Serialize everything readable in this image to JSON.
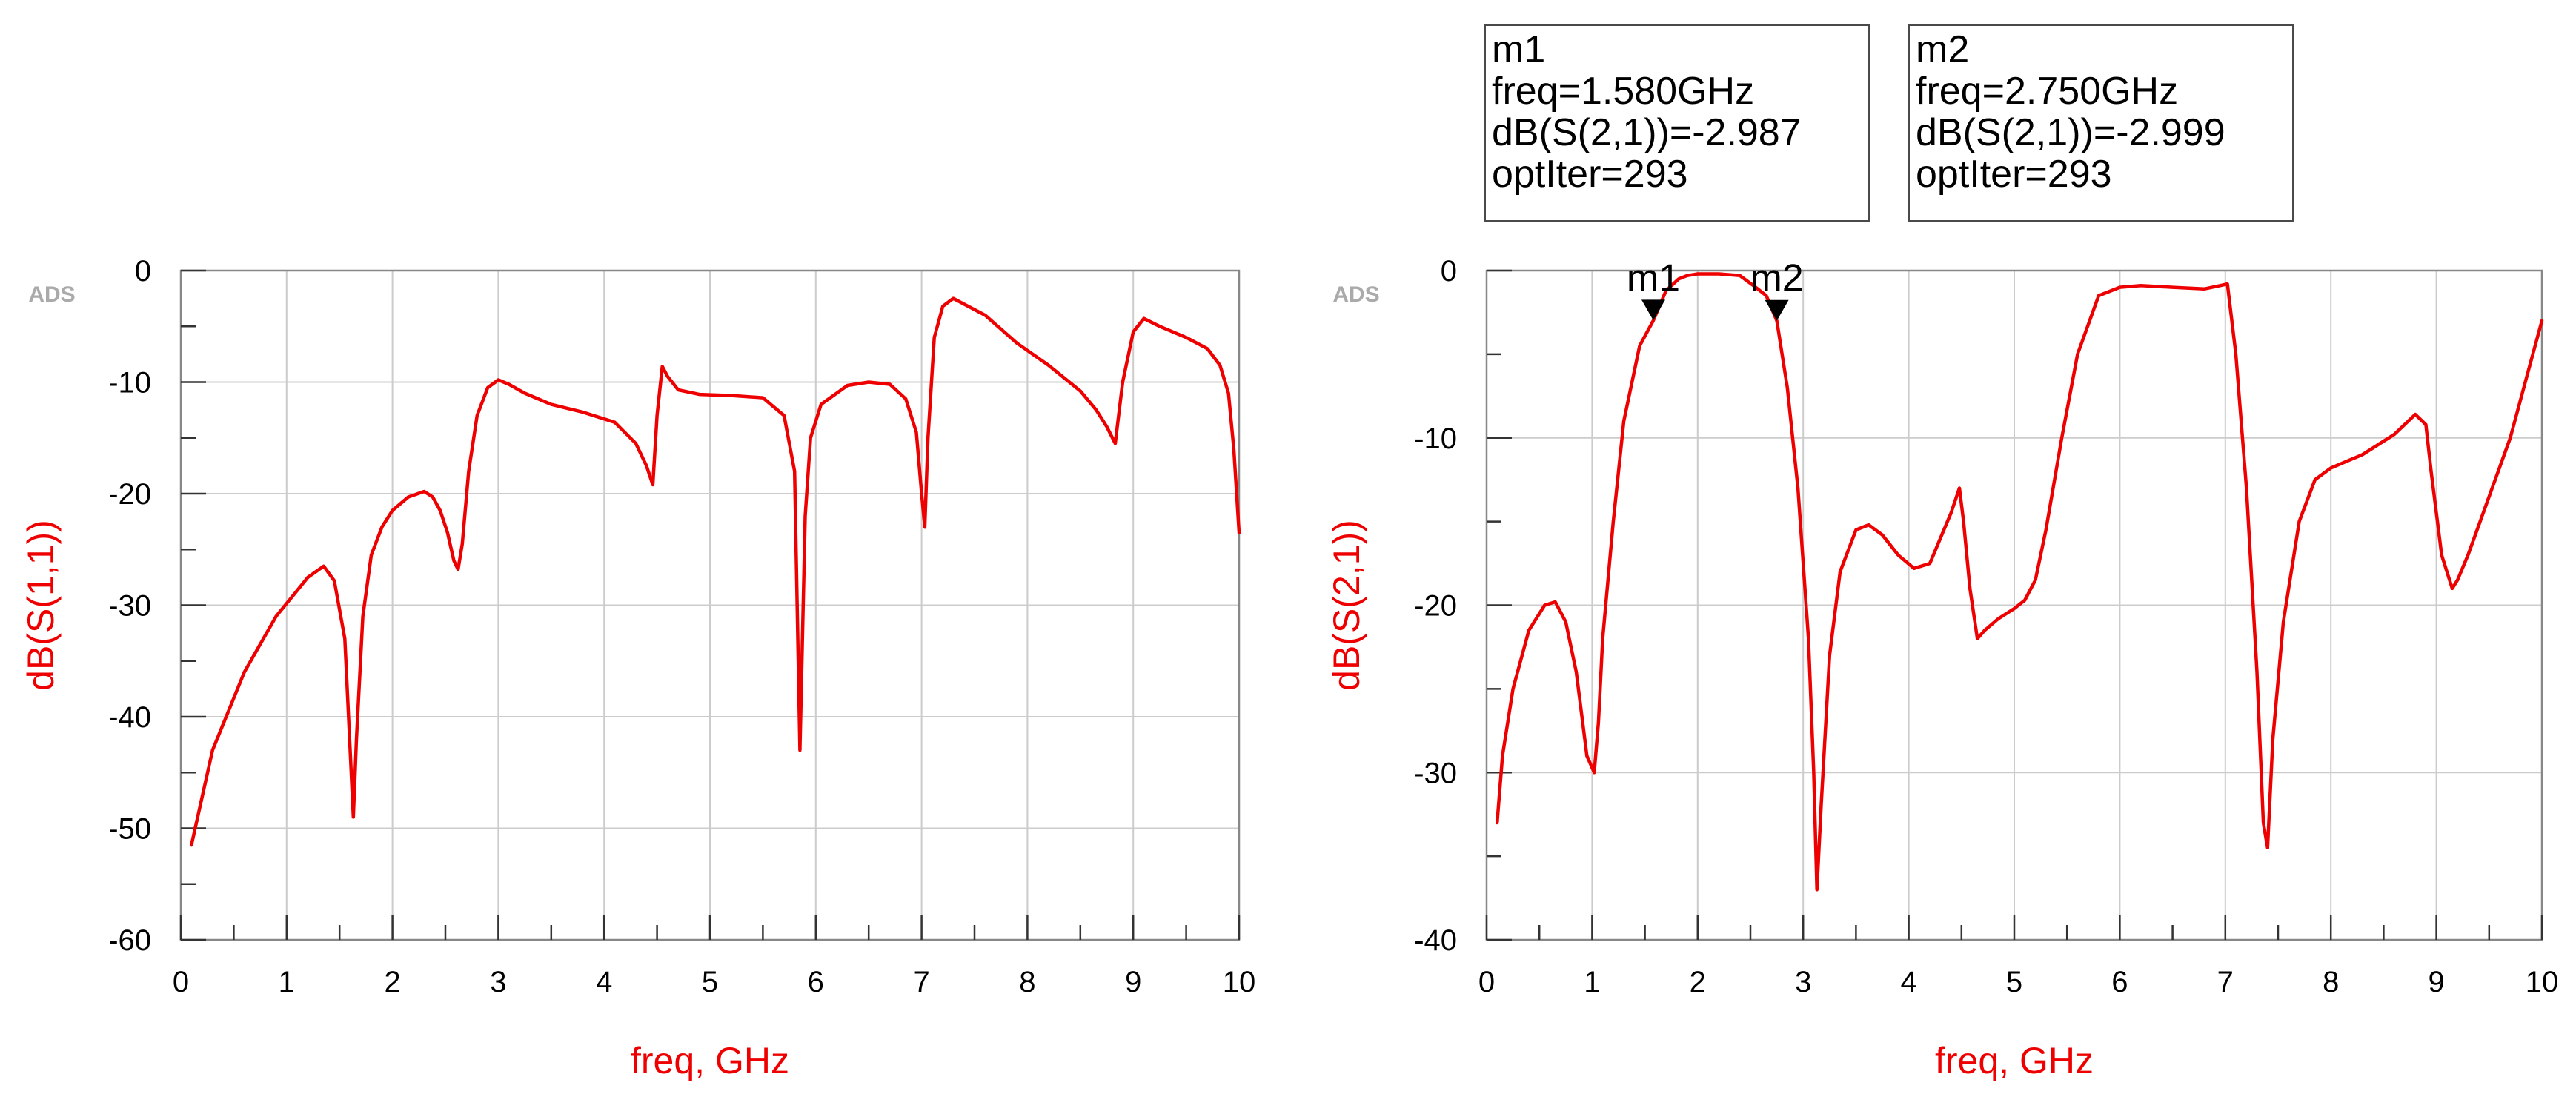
{
  "watermark": "ADS",
  "colors": {
    "curve": "#ee0000",
    "axis_label": "#ee0000",
    "grid": "#cccccc",
    "frame": "#888888",
    "marker": "#000000"
  },
  "chart_data": [
    {
      "type": "line",
      "xlabel": "freq, GHz",
      "ylabel": "dB(S(1,1))",
      "xlim": [
        0,
        10
      ],
      "ylim": [
        -60,
        0
      ],
      "xticks": [
        0,
        1,
        2,
        3,
        4,
        5,
        6,
        7,
        8,
        9,
        10
      ],
      "yticks": [
        0,
        -10,
        -20,
        -30,
        -40,
        -50,
        -60
      ],
      "grid": true,
      "series": [
        {
          "x": [
            0.1,
            0.3,
            0.6,
            0.9,
            1.2,
            1.35,
            1.45,
            1.55,
            1.6,
            1.63,
            1.66,
            1.72,
            1.8,
            1.9,
            2.0,
            2.15,
            2.3,
            2.38,
            2.45,
            2.52,
            2.58,
            2.62,
            2.66,
            2.72,
            2.8,
            2.9,
            3.0,
            3.1,
            3.25,
            3.5,
            3.8,
            4.1,
            4.3,
            4.4,
            4.46,
            4.5,
            4.55,
            4.6,
            4.7,
            4.9,
            5.2,
            5.5,
            5.7,
            5.8,
            5.85,
            5.9,
            5.95,
            6.05,
            6.3,
            6.5,
            6.7,
            6.85,
            6.95,
            7.0,
            7.03,
            7.06,
            7.12,
            7.2,
            7.3,
            7.6,
            7.9,
            8.2,
            8.5,
            8.65,
            8.75,
            8.83,
            8.9,
            9.0,
            9.1,
            9.25,
            9.5,
            9.7,
            9.82,
            9.9,
            9.95,
            10.0
          ],
          "y": [
            -51.5,
            -43,
            -36,
            -31,
            -27.5,
            -26.5,
            -27.8,
            -33,
            -43,
            -49,
            -42,
            -31,
            -25.5,
            -23,
            -21.5,
            -20.3,
            -19.8,
            -20.3,
            -21.5,
            -23.5,
            -26,
            -26.8,
            -24.5,
            -18,
            -13,
            -10.5,
            -9.8,
            -10.2,
            -11,
            -12,
            -12.7,
            -13.6,
            -15.5,
            -17.5,
            -19.2,
            -13,
            -8.6,
            -9.5,
            -10.7,
            -11.1,
            -11.2,
            -11.4,
            -13,
            -18,
            -43,
            -22,
            -15,
            -12,
            -10.3,
            -10,
            -10.2,
            -11.5,
            -14.5,
            -20,
            -23,
            -15,
            -6,
            -3.2,
            -2.5,
            -4,
            -6.5,
            -8.5,
            -10.8,
            -12.5,
            -14,
            -15.5,
            -10,
            -5.5,
            -4.3,
            -5,
            -6,
            -7,
            -8.5,
            -11,
            -16,
            -23.5
          ]
        }
      ]
    },
    {
      "type": "line",
      "xlabel": "freq, GHz",
      "ylabel": "dB(S(2,1))",
      "xlim": [
        0,
        10
      ],
      "ylim": [
        -40,
        0
      ],
      "xticks": [
        0,
        1,
        2,
        3,
        4,
        5,
        6,
        7,
        8,
        9,
        10
      ],
      "yticks": [
        0,
        -10,
        -20,
        -30,
        -40
      ],
      "grid": true,
      "series": [
        {
          "x": [
            0.1,
            0.15,
            0.25,
            0.4,
            0.55,
            0.65,
            0.75,
            0.85,
            0.95,
            1.02,
            1.06,
            1.1,
            1.2,
            1.3,
            1.45,
            1.58,
            1.7,
            1.82,
            1.9,
            2.0,
            2.2,
            2.4,
            2.55,
            2.65,
            2.75,
            2.85,
            2.95,
            3.05,
            3.1,
            3.13,
            3.17,
            3.25,
            3.35,
            3.5,
            3.62,
            3.75,
            3.9,
            4.05,
            4.2,
            4.3,
            4.4,
            4.48,
            4.52,
            4.58,
            4.65,
            4.72,
            4.85,
            5.0,
            5.1,
            5.2,
            5.3,
            5.45,
            5.6,
            5.8,
            6.0,
            6.2,
            6.5,
            6.8,
            6.95,
            7.02,
            7.1,
            7.2,
            7.3,
            7.36,
            7.4,
            7.45,
            7.55,
            7.7,
            7.85,
            8.0,
            8.3,
            8.6,
            8.8,
            8.9,
            8.95,
            9.05,
            9.15,
            9.2,
            9.3,
            9.5,
            9.7,
            9.85,
            10.0
          ],
          "y": [
            -33,
            -29,
            -25,
            -21.5,
            -20,
            -19.8,
            -21,
            -24,
            -29,
            -30,
            -27,
            -22,
            -15,
            -9,
            -4.5,
            -2.98,
            -1.2,
            -0.5,
            -0.3,
            -0.2,
            -0.2,
            -0.3,
            -1,
            -1.5,
            -3,
            -7,
            -13,
            -22,
            -30,
            -37,
            -32,
            -23,
            -18,
            -15.5,
            -15.2,
            -15.8,
            -17,
            -17.8,
            -17.5,
            -16,
            -14.5,
            -13,
            -15,
            -19,
            -22,
            -21.5,
            -20.8,
            -20.2,
            -19.7,
            -18.5,
            -15.5,
            -10,
            -5,
            -1.5,
            -1,
            -0.9,
            -1,
            -1.1,
            -0.9,
            -0.8,
            -5,
            -13,
            -24,
            -33,
            -34.5,
            -28,
            -21,
            -15,
            -12.5,
            -11.8,
            -11,
            -9.8,
            -8.6,
            -9.2,
            -12,
            -17,
            -19,
            -18.5,
            -17,
            -13.5,
            -10,
            -6.5,
            -3
          ]
        }
      ],
      "markers": [
        {
          "name": "m1",
          "x": 1.58,
          "y": -2.987,
          "lines": [
            "m1",
            "freq=1.580GHz",
            "dB(S(2,1))=-2.987",
            "optIter=293"
          ]
        },
        {
          "name": "m2",
          "x": 2.75,
          "y": -2.999,
          "lines": [
            "m2",
            "freq=2.750GHz",
            "dB(S(2,1))=-2.999",
            "optIter=293"
          ]
        }
      ]
    }
  ]
}
